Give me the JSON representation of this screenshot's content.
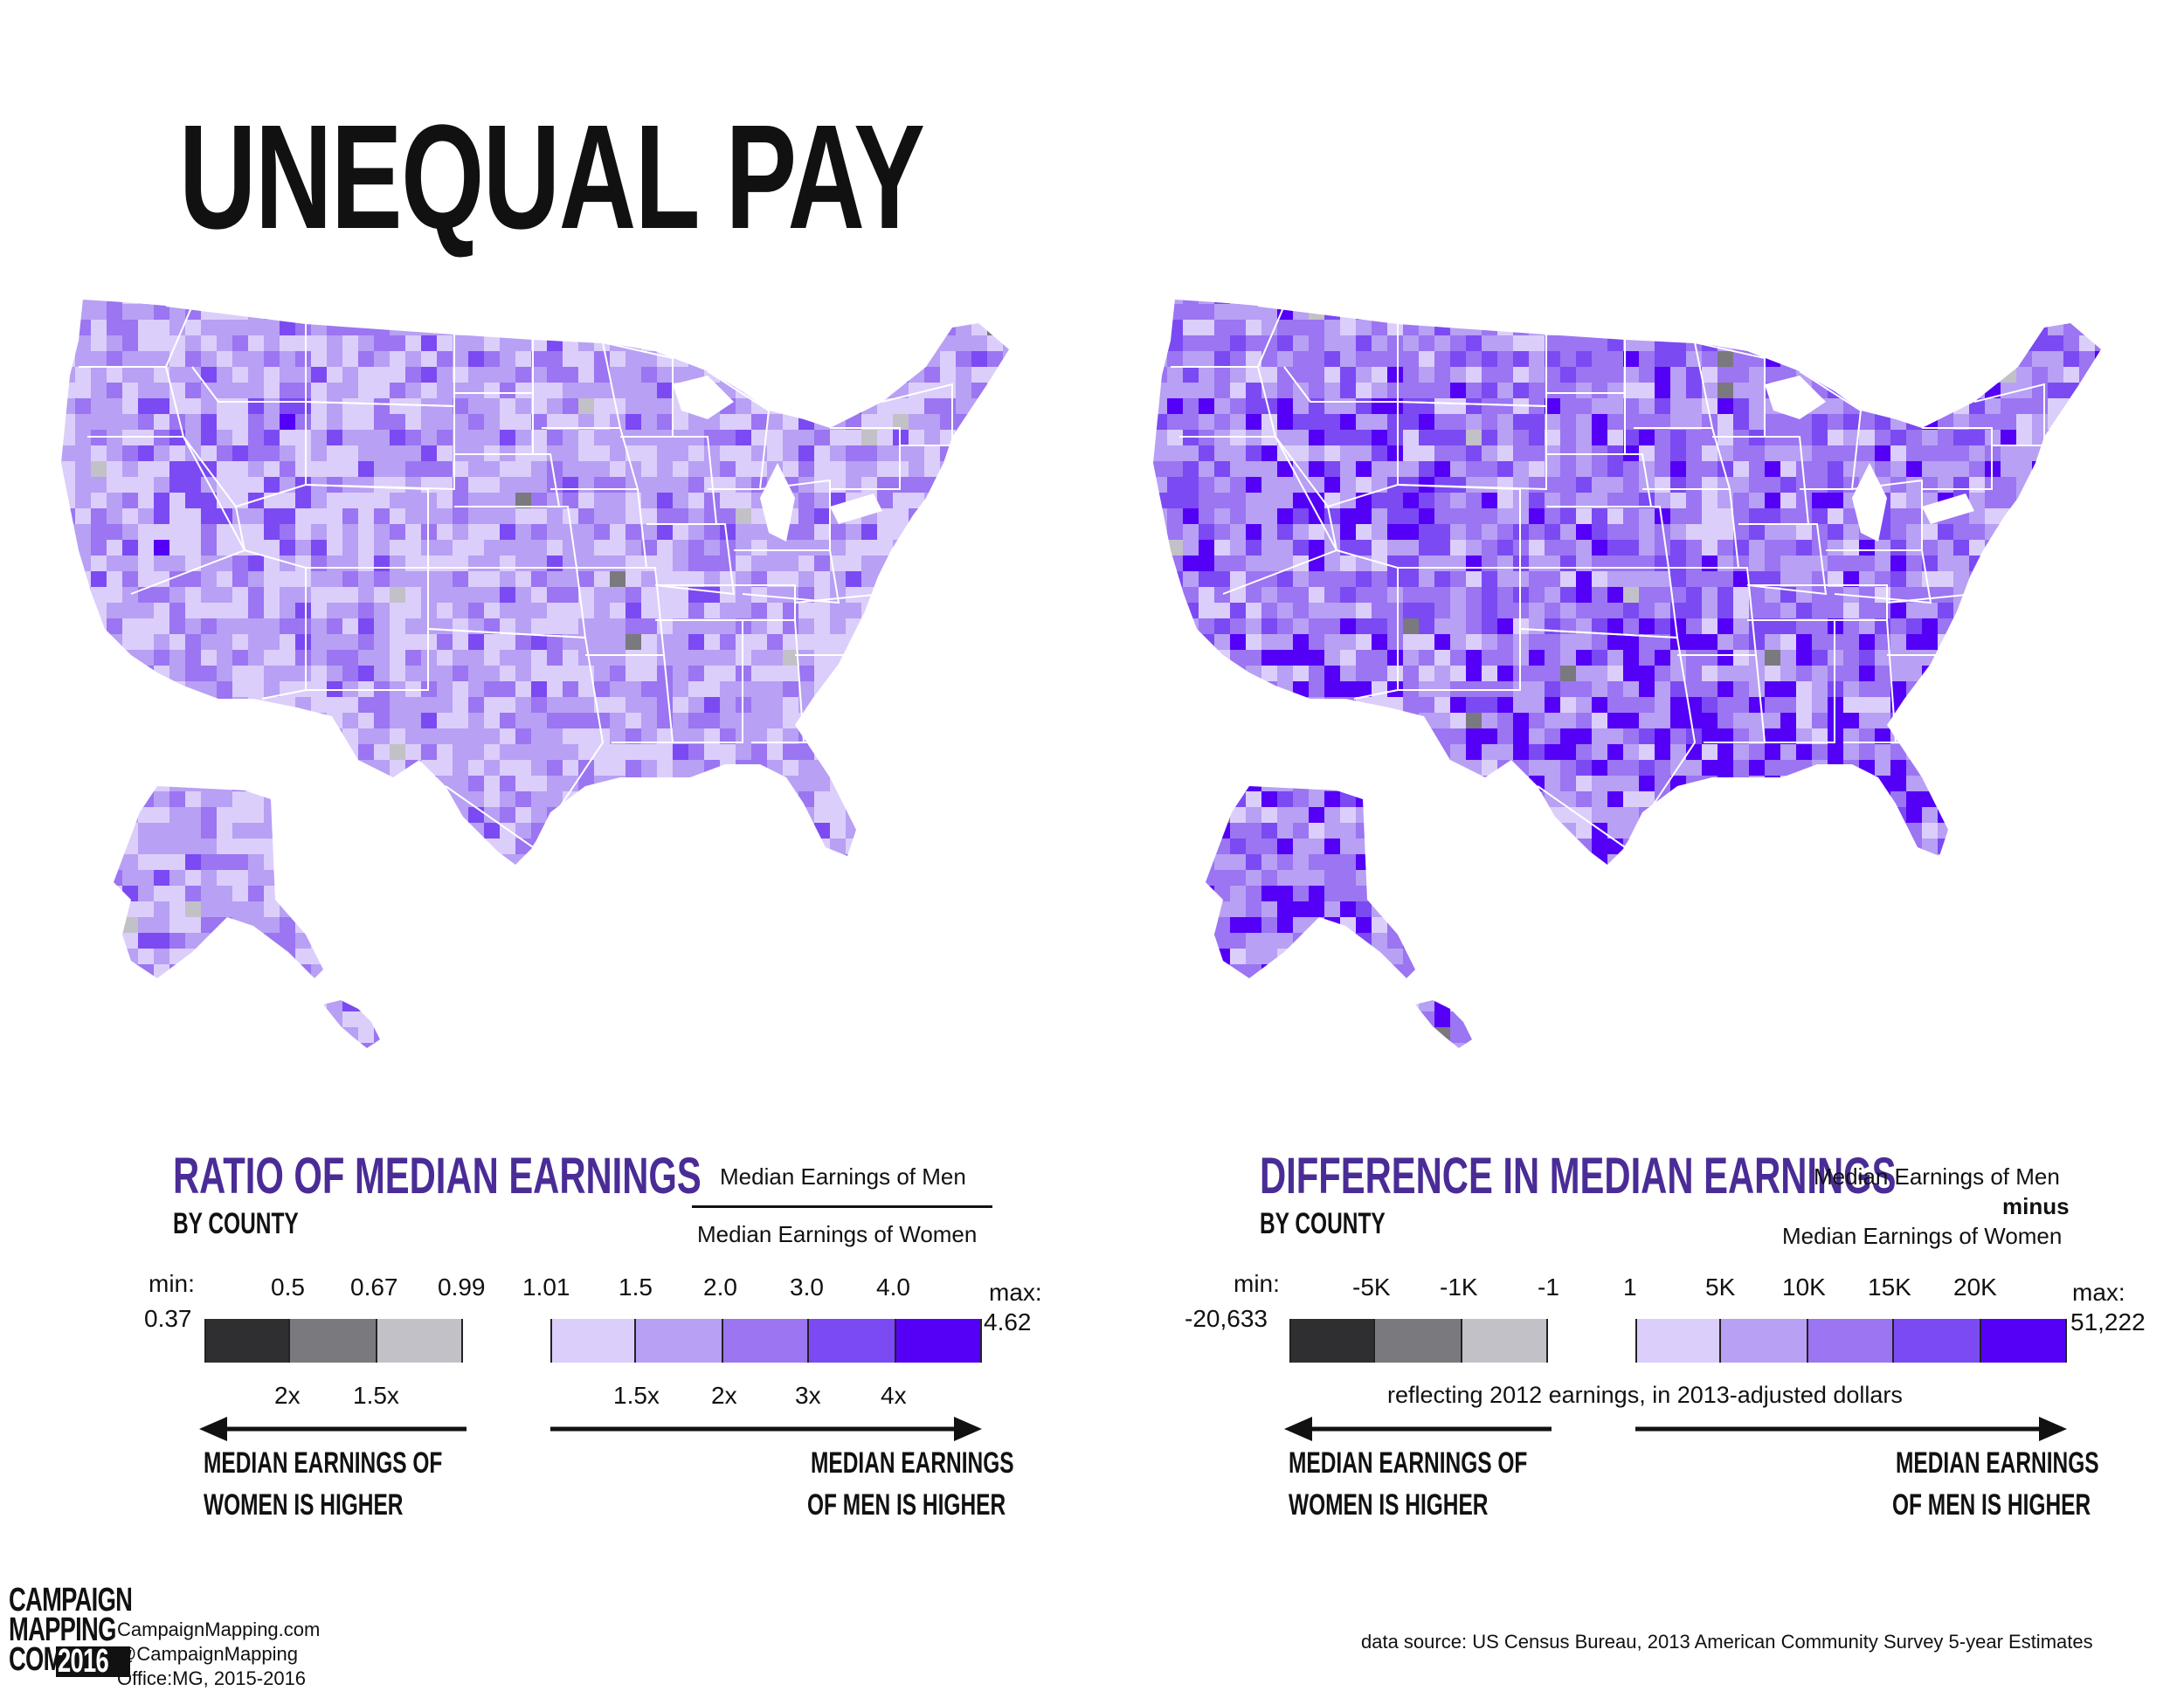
{
  "title": "UNEQUAL PAY",
  "colors": {
    "grey_dark": "#2f2f31",
    "grey_mid": "#7a797e",
    "grey_light": "#c2c1c7",
    "purple_1": "#dccefa",
    "purple_2": "#b8a0f4",
    "purple_3": "#9b75f2",
    "purple_4": "#7b4af2",
    "purple_5": "#5400f7",
    "title_purple": "#4a2c96",
    "state_border": "#ffffff"
  },
  "left_legend": {
    "title": "RATIO OF MEDIAN EARNINGS",
    "subtitle": "BY COUNTY",
    "formula_top": "Median Earnings of Men",
    "formula_bottom": "Median Earnings of Women",
    "min_label": "min:",
    "min_value": "0.37",
    "max_label": "max:",
    "max_value": "4.62",
    "ticks_low": [
      "0.5",
      "0.67",
      "0.99"
    ],
    "ticks_high": [
      "1.01",
      "1.5",
      "2.0",
      "3.0",
      "4.0"
    ],
    "multiples_low": [
      "2x",
      "1.5x"
    ],
    "multiples_high": [
      "1.5x",
      "2x",
      "3x",
      "4x"
    ],
    "arrow_left_line1": "MEDIAN EARNINGS OF",
    "arrow_left_line2": "WOMEN IS HIGHER",
    "arrow_right_line1": "MEDIAN EARNINGS",
    "arrow_right_line2": "OF MEN IS HIGHER"
  },
  "right_legend": {
    "title": "DIFFERENCE IN MEDIAN EARNINGS",
    "subtitle": "BY COUNTY",
    "formula_top": "Median Earnings of Men",
    "formula_mid": "minus",
    "formula_bottom": "Median Earnings of Women",
    "min_label": "min:",
    "min_value": "-20,633",
    "max_label": "max:",
    "max_value": "51,222",
    "ticks_low": [
      "-5K",
      "-1K",
      "-1"
    ],
    "ticks_high": [
      "1",
      "5K",
      "10K",
      "15K",
      "20K"
    ],
    "note": "reflecting 2012 earnings, in 2013-adjusted dollars",
    "arrow_left_line1": "MEDIAN EARNINGS OF",
    "arrow_left_line2": "WOMEN IS HIGHER",
    "arrow_right_line1": "MEDIAN EARNINGS",
    "arrow_right_line2": "OF MEN IS HIGHER"
  },
  "footer": {
    "logo_line1": "CAMPAIGN",
    "logo_line2": "MAPPING",
    "logo_line3": "COM",
    "logo_year": "2016",
    "site": "CampaignMapping.com",
    "handle": "@CampaignMapping",
    "office": "Office:MG, 2015-2016",
    "source": "data source: US Census Bureau, 2013 American Community Survey 5-year Estimates"
  }
}
